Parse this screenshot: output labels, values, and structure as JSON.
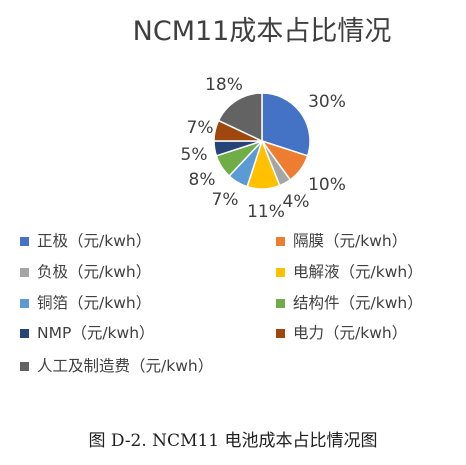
{
  "chart_data": {
    "type": "pie",
    "title": "NCM11成本占比情况",
    "slices": [
      {
        "name": "正极（元/kwh）",
        "value": 30,
        "label": "30%",
        "color": "#4472c4"
      },
      {
        "name": "隔膜（元/kwh）",
        "value": 10,
        "label": "10%",
        "color": "#ed7d31"
      },
      {
        "name": "负极（元/kwh）",
        "value": 4,
        "label": "4%",
        "color": "#a5a5a5"
      },
      {
        "name": "电解液（元/kwh）",
        "value": 11,
        "label": "11%",
        "color": "#ffc000"
      },
      {
        "name": "铜箔（元/kwh）",
        "value": 7,
        "label": "7%",
        "color": "#5b9bd5"
      },
      {
        "name": "结构件（元/kwh）",
        "value": 8,
        "label": "8%",
        "color": "#70ad47"
      },
      {
        "name": "NMP（元/kwh）",
        "value": 5,
        "label": "5%",
        "color": "#264478"
      },
      {
        "name": "电力（元/kwh）",
        "value": 7,
        "label": "7%",
        "color": "#9e480e"
      },
      {
        "name": "人工及制造费（元/kwh）",
        "value": 18,
        "label": "18%",
        "color": "#636363"
      }
    ],
    "legend_placement": "bottom"
  },
  "caption": "图 D-2. NCM11 电池成本占比情况图"
}
